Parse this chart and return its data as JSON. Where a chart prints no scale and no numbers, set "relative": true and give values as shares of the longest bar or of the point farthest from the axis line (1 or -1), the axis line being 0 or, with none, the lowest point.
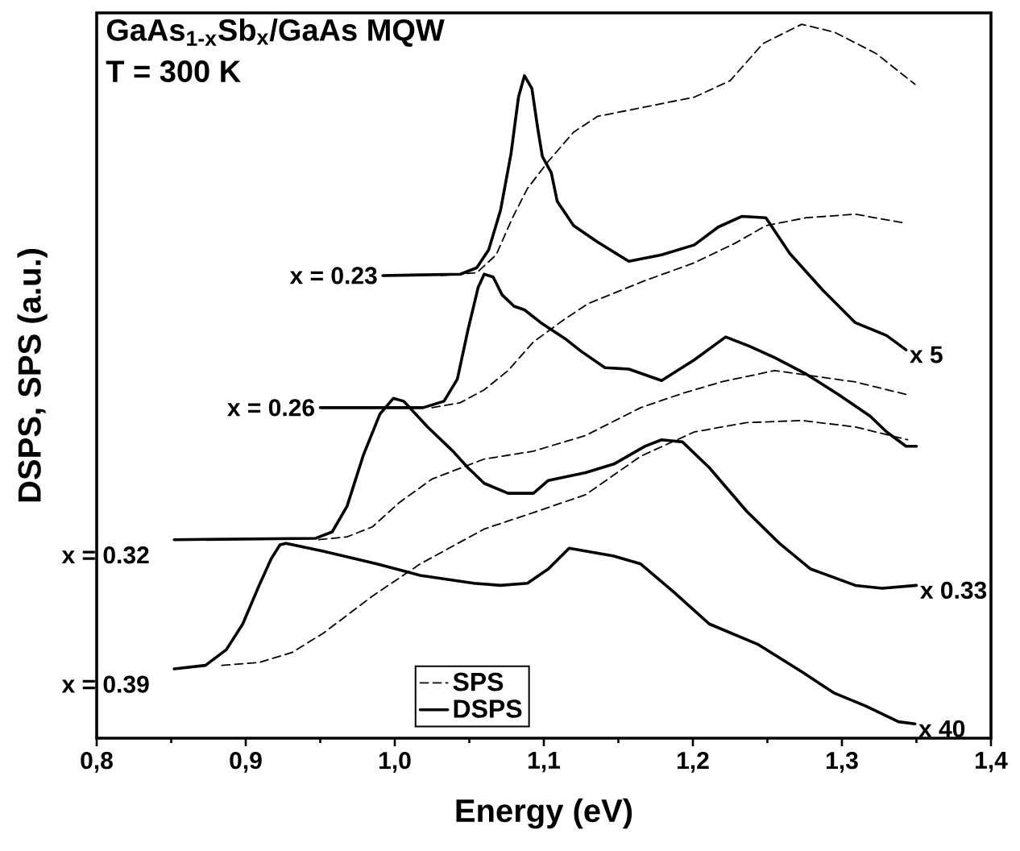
{
  "chart_data": {
    "type": "line",
    "title": "GaAs$_{1-x}$Sb$_{x}$/GaAs MQW",
    "subtitle": "T = 300 K",
    "xlabel": "Energy (eV)",
    "ylabel": "DSPS, SPS (a.u.)",
    "relative": true,
    "xlim": [
      0.8,
      1.4
    ],
    "xticks": [
      {
        "value": 0.8,
        "label": "0,8"
      },
      {
        "value": 0.9,
        "label": "0,9"
      },
      {
        "value": 1.0,
        "label": "1,0"
      },
      {
        "value": 1.1,
        "label": "1,1"
      },
      {
        "value": 1.2,
        "label": "1,2"
      },
      {
        "value": 1.3,
        "label": "1,3"
      },
      {
        "value": 1.4,
        "label": "1,4"
      }
    ],
    "legend": "bottom",
    "marker": "none",
    "series": [
      {
        "name": "SPS",
        "color": "#000000",
        "line_style": "dashed",
        "x": [
          1.031,
          1.055,
          1.068,
          1.079,
          1.089,
          1.103,
          1.12,
          1.136,
          1.165,
          1.201,
          1.225,
          1.247,
          1.273,
          1.295,
          1.323,
          1.349
        ],
        "values": [
          0.648,
          0.652,
          0.677,
          0.729,
          0.77,
          0.808,
          0.849,
          0.871,
          0.883,
          0.898,
          0.921,
          0.973,
          1.0,
          0.989,
          0.959,
          0.916
        ]
      },
      {
        "name": "DSPS",
        "color": "#000000",
        "line_style": "solid",
        "x": [
          0.992,
          1.044,
          1.055,
          1.063,
          1.071,
          1.078,
          1.083,
          1.087,
          1.092,
          1.096,
          1.099,
          1.105,
          1.109,
          1.12,
          1.136,
          1.157,
          1.179,
          1.201,
          1.217,
          1.233,
          1.249,
          1.265,
          1.287,
          1.309,
          1.33,
          1.343
        ],
        "values": [
          0.648,
          0.65,
          0.659,
          0.684,
          0.74,
          0.819,
          0.898,
          0.928,
          0.91,
          0.853,
          0.815,
          0.792,
          0.752,
          0.718,
          0.695,
          0.668,
          0.677,
          0.691,
          0.716,
          0.731,
          0.729,
          0.679,
          0.628,
          0.582,
          0.564,
          0.544
        ]
      },
      {
        "color": "#000000",
        "line_style": "dashed",
        "x": [
          1.025,
          1.044,
          1.06,
          1.076,
          1.093,
          1.114,
          1.13,
          1.168,
          1.201,
          1.228,
          1.249,
          1.276,
          1.309,
          1.341
        ],
        "values": [
          0.463,
          0.47,
          0.488,
          0.515,
          0.555,
          0.587,
          0.609,
          0.641,
          0.666,
          0.693,
          0.718,
          0.729,
          0.734,
          0.722
        ]
      },
      {
        "color": "#000000",
        "line_style": "solid",
        "x": [
          0.95,
          1.019,
          1.033,
          1.042,
          1.049,
          1.056,
          1.06,
          1.066,
          1.072,
          1.08,
          1.087,
          1.098,
          1.114,
          1.125,
          1.141,
          1.157,
          1.179,
          1.201,
          1.222,
          1.238,
          1.255,
          1.276,
          1.298,
          1.319,
          1.33,
          1.343,
          1.35
        ],
        "values": [
          0.463,
          0.463,
          0.472,
          0.503,
          0.571,
          0.632,
          0.65,
          0.646,
          0.621,
          0.605,
          0.6,
          0.582,
          0.56,
          0.542,
          0.519,
          0.517,
          0.501,
          0.53,
          0.562,
          0.549,
          0.533,
          0.51,
          0.481,
          0.451,
          0.429,
          0.409,
          0.409
        ]
      },
      {
        "color": "#000000",
        "line_style": "dashed",
        "x": [
          0.949,
          0.968,
          0.985,
          1.003,
          1.025,
          1.06,
          1.093,
          1.128,
          1.165,
          1.193,
          1.219,
          1.255,
          1.309,
          1.344
        ],
        "values": [
          0.278,
          0.282,
          0.296,
          0.33,
          0.363,
          0.391,
          0.402,
          0.424,
          0.463,
          0.483,
          0.499,
          0.515,
          0.499,
          0.481
        ]
      },
      {
        "color": "#000000",
        "line_style": "solid",
        "x": [
          0.852,
          0.947,
          0.958,
          0.968,
          0.979,
          0.99,
          0.999,
          1.006,
          1.022,
          1.039,
          1.049,
          1.06,
          1.076,
          1.093,
          1.103,
          1.128,
          1.147,
          1.168,
          1.179,
          1.193,
          1.211,
          1.236,
          1.258,
          1.279,
          1.309,
          1.327,
          1.35
        ],
        "values": [
          0.278,
          0.28,
          0.289,
          0.325,
          0.397,
          0.454,
          0.476,
          0.472,
          0.436,
          0.402,
          0.379,
          0.357,
          0.343,
          0.343,
          0.361,
          0.372,
          0.384,
          0.409,
          0.418,
          0.415,
          0.379,
          0.318,
          0.273,
          0.237,
          0.214,
          0.21,
          0.214
        ]
      },
      {
        "color": "#000000",
        "line_style": "dashed",
        "x": [
          0.884,
          0.909,
          0.931,
          0.952,
          0.985,
          1.017,
          1.06,
          1.093,
          1.128,
          1.165,
          1.201,
          1.236,
          1.273,
          1.309,
          1.344
        ],
        "values": [
          0.102,
          0.106,
          0.12,
          0.147,
          0.199,
          0.244,
          0.293,
          0.316,
          0.341,
          0.395,
          0.429,
          0.442,
          0.445,
          0.436,
          0.418
        ]
      },
      {
        "color": "#000000",
        "line_style": "solid",
        "x": [
          0.852,
          0.873,
          0.887,
          0.898,
          0.909,
          0.917,
          0.923,
          0.927,
          0.952,
          0.988,
          1.017,
          1.053,
          1.071,
          1.089,
          1.103,
          1.117,
          1.147,
          1.165,
          1.187,
          1.211,
          1.244,
          1.273,
          1.295,
          1.316,
          1.338,
          1.349
        ],
        "values": [
          0.097,
          0.102,
          0.124,
          0.16,
          0.214,
          0.251,
          0.271,
          0.273,
          0.262,
          0.244,
          0.228,
          0.217,
          0.214,
          0.217,
          0.237,
          0.266,
          0.255,
          0.244,
          0.205,
          0.16,
          0.131,
          0.093,
          0.063,
          0.045,
          0.023,
          0.02
        ]
      }
    ],
    "annotations": [
      {
        "text": "x = 0.23",
        "x": 0.992,
        "y": 0.648
      },
      {
        "text": "x = 0.26",
        "x": 0.95,
        "y": 0.463
      },
      {
        "text": "x = 0.32",
        "x": 0.852,
        "y": 0.278
      },
      {
        "text": "x = 0.39",
        "x": 0.852,
        "y": 0.097
      },
      {
        "text": "x 5",
        "x": 1.343,
        "y": 0.544
      },
      {
        "text": "x 0.33",
        "x": 1.35,
        "y": 0.214
      },
      {
        "text": "x 40",
        "x": 1.349,
        "y": 0.02
      }
    ]
  }
}
